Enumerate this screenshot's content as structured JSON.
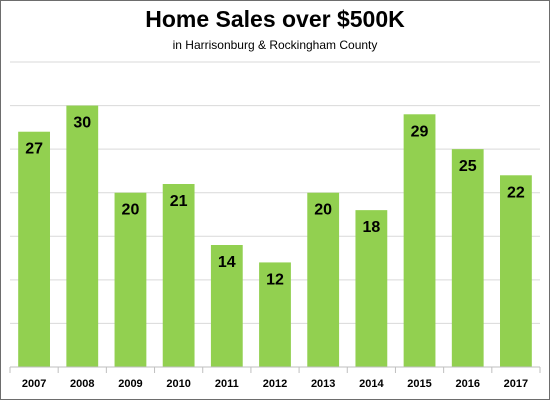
{
  "chart_data": {
    "type": "bar",
    "title": "Home Sales over $500K",
    "subtitle": "in Harrisonburg & Rockingham County",
    "categories": [
      "2007",
      "2008",
      "2009",
      "2010",
      "2011",
      "2012",
      "2013",
      "2014",
      "2015",
      "2016",
      "2017"
    ],
    "values": [
      27,
      30,
      20,
      21,
      14,
      12,
      20,
      18,
      29,
      25,
      22
    ],
    "ylim": [
      0,
      35
    ],
    "grid": true,
    "y_tick_labels_visible": false,
    "bar_color": "#92d050",
    "data_labels": true
  }
}
